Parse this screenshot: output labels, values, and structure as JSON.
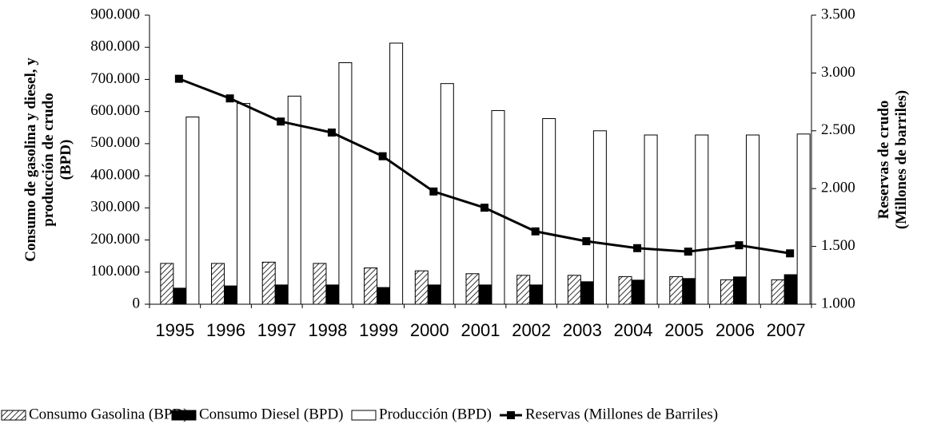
{
  "chart_data": {
    "type": "bar",
    "y_label": [
      "Consumo de gasolina y diesel, y",
      "producción de crudo",
      "(BPD)"
    ],
    "y2_label": [
      "Reservas de crudo",
      "(Millones de barriles)"
    ],
    "categories": [
      "1995",
      "1996",
      "1997",
      "1998",
      "1999",
      "2000",
      "2001",
      "2002",
      "2003",
      "2004",
      "2005",
      "2006",
      "2007"
    ],
    "series": [
      {
        "name": "Consumo Gasolina (BPD)",
        "type": "bar",
        "color": "#000000",
        "hatch": true,
        "values": [
          127000,
          127000,
          131000,
          127000,
          113000,
          104000,
          95000,
          90000,
          90000,
          86000,
          86000,
          76000,
          76000
        ]
      },
      {
        "name": "Consumo Diesel (BPD)",
        "type": "bar",
        "color": "#000000",
        "values": [
          50000,
          57000,
          60000,
          60000,
          52000,
          60000,
          60000,
          60000,
          70000,
          75000,
          80000,
          85000,
          92000
        ]
      },
      {
        "name": "Producción (BPD)",
        "type": "bar",
        "color": "#ffffff",
        "values": [
          583000,
          625000,
          648000,
          752000,
          813000,
          687000,
          603000,
          578000,
          540000,
          527000,
          527000,
          527000,
          530000
        ]
      },
      {
        "name": "Reservas (Millones de Barriles)",
        "type": "line",
        "axis": "y2",
        "color": "#000000",
        "values": [
          2950,
          2780,
          2580,
          2485,
          2280,
          1975,
          1835,
          1630,
          1545,
          1485,
          1455,
          1510,
          1440
        ]
      }
    ],
    "ylim": [
      0,
      900000
    ],
    "yticks": [
      0,
      {
        "value": 100000,
        "label": "100.000"
      },
      {
        "value": 200000,
        "label": "200.000"
      },
      {
        "value": 300000,
        "label": "300.000"
      },
      {
        "value": 400000,
        "label": "400.000"
      },
      {
        "value": 500000,
        "label": "500.000"
      },
      {
        "value": 600000,
        "label": "600.000"
      },
      {
        "value": 700000,
        "label": "700.000"
      },
      {
        "value": 800000,
        "label": "800.000"
      },
      {
        "value": 900000,
        "label": "900.000"
      }
    ],
    "y2lim": [
      1000,
      3500
    ],
    "y2ticks": [
      {
        "value": 1000,
        "label": "1.000"
      },
      {
        "value": 1500,
        "label": "1.500"
      },
      {
        "value": 2000,
        "label": "2.000"
      },
      {
        "value": 2500,
        "label": "2.500"
      },
      {
        "value": 3000,
        "label": "3.000"
      },
      {
        "value": 3500,
        "label": "3.500"
      }
    ],
    "legend": "bottom"
  }
}
